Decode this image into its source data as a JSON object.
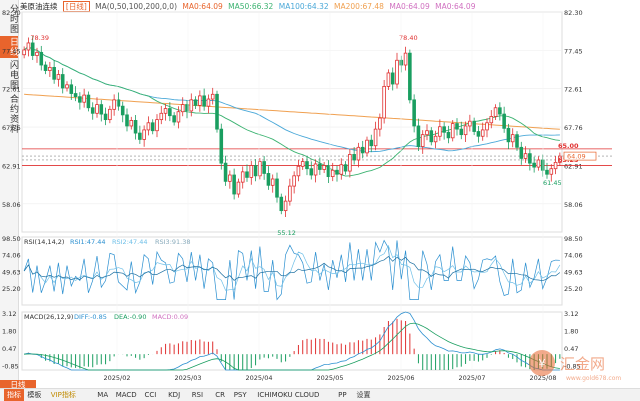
{
  "header": {
    "instrument": "美原油连续",
    "period": "[日线]",
    "ma_label": "MA(0,50,100,200,0,0)",
    "ma50": "MA50:66.32",
    "ma100": "MA100:64.32",
    "ma200": "MA200:67.48",
    "ma_extra1": "MA0:64.09",
    "ma_extra2": "MA0:64.09",
    "ma_first": "MA0:64.09"
  },
  "sidebar": {
    "items": [
      {
        "label": "分时图",
        "active": false
      },
      {
        "label": "日线",
        "active": true
      },
      {
        "label": "闪电图",
        "active": false
      },
      {
        "label": "合约资料",
        "active": false
      }
    ]
  },
  "colors": {
    "up": "#e03030",
    "down": "#1a9e60",
    "ma50": "#3cb371",
    "ma100": "#4aa8d8",
    "ma200": "#f0a050",
    "accent": "#e8642c",
    "rsi1": "#2a8fd0",
    "rsi2": "#70c0e8",
    "diff": "#2a8fd0",
    "dea": "#1a9e60"
  },
  "chart_data": [
    {
      "type": "candlestick",
      "title": "美原油连续 [日线]",
      "x_labels": [
        "2025/02",
        "2025/03",
        "2025/04",
        "2025/05",
        "2025/06",
        "2025/07",
        "2025/08"
      ],
      "ylim": [
        54.5,
        82.3
      ],
      "y_ticks": [
        82.3,
        77.45,
        72.61,
        67.76,
        62.91,
        58.06
      ],
      "price_labels": {
        "max_left": "78.39",
        "max_mid": "78.40",
        "min_left": "55.12",
        "min_right": "61.45"
      },
      "right_tags": [
        {
          "text": "65.00",
          "value": 65.0,
          "color": "#e03030"
        },
        {
          "text": "63.25",
          "value": 63.25,
          "color": "#e03030"
        },
        {
          "text": "64.09",
          "value": 64.09,
          "color": "#e8642c"
        }
      ],
      "hlines": [
        65.0,
        64.09,
        63.6,
        62.91
      ],
      "closes": [
        77.5,
        78.39,
        76.8,
        77.2,
        75.6,
        74.9,
        75.3,
        73.8,
        74.4,
        72.7,
        73.1,
        72.0,
        71.6,
        70.9,
        71.8,
        70.2,
        69.5,
        70.6,
        69.4,
        68.7,
        70.0,
        71.2,
        70.4,
        69.3,
        67.9,
        68.6,
        67.0,
        66.2,
        67.4,
        68.3,
        67.3,
        68.7,
        69.5,
        70.1,
        69.2,
        68.4,
        69.7,
        70.6,
        69.8,
        71.2,
        70.5,
        71.7,
        70.4,
        71.3,
        71.9,
        67.5,
        63.2,
        60.9,
        61.7,
        59.3,
        60.8,
        62.1,
        61.4,
        62.9,
        61.6,
        63.4,
        61.9,
        60.4,
        61.2,
        58.9,
        57.2,
        58.4,
        60.3,
        61.6,
        62.8,
        63.4,
        62.5,
        61.7,
        63.1,
        62.4,
        62.9,
        61.5,
        62.3,
        61.8,
        63.0,
        62.2,
        64.3,
        63.6,
        65.2,
        64.5,
        66.1,
        65.4,
        67.5,
        68.9,
        72.9,
        74.6,
        73.2,
        76.2,
        75.6,
        77.1,
        71.2,
        67.9,
        65.3,
        66.8,
        67.3,
        65.9,
        66.6,
        67.8,
        67.1,
        66.4,
        68.2,
        67.5,
        66.8,
        67.9,
        68.5,
        67.2,
        66.6,
        67.4,
        68.3,
        69.1,
        70.2,
        69.4,
        67.6,
        65.9,
        66.8,
        65.2,
        63.8,
        64.4,
        63.2,
        62.7,
        63.6,
        62.3,
        61.8,
        62.5,
        63.3,
        64.09
      ],
      "rsi": {
        "label": "RSI(14,14,2)",
        "values": {
          "RSI1": 47.44,
          "RSI2": 47.44,
          "RSI3": 91.38
        },
        "legend": [
          "RSI1:47.44",
          "RSI2:47.44",
          "RSI3:91.38"
        ],
        "ylim": [
          0,
          100
        ],
        "y_ticks": [
          98.5,
          74.06,
          49.63,
          25.2
        ]
      },
      "macd": {
        "label": "MACD(26,12,9)",
        "values": {
          "DIFF": -0.85,
          "DEA": -0.9,
          "MACD": 0.09
        },
        "legend": [
          "DIFF:-0.85",
          "DEA:-0.90",
          "MACD:0.09"
        ],
        "ylim": [
          -1.2,
          3.2
        ],
        "y_ticks": [
          3.12,
          1.8,
          0.47,
          -0.85
        ]
      }
    }
  ],
  "bottom_tabs": [
    "指标",
    "模板",
    "VIP指标",
    "MA",
    "MACD",
    "CCI",
    "KDJ",
    "RSI",
    "CR",
    "PSY",
    "ICHIMOKU CLOUD",
    "PP",
    "设置"
  ],
  "period_buttons": {
    "current": "日线"
  },
  "watermark": {
    "brand": "汇金网",
    "url": "www.gold678.com"
  }
}
